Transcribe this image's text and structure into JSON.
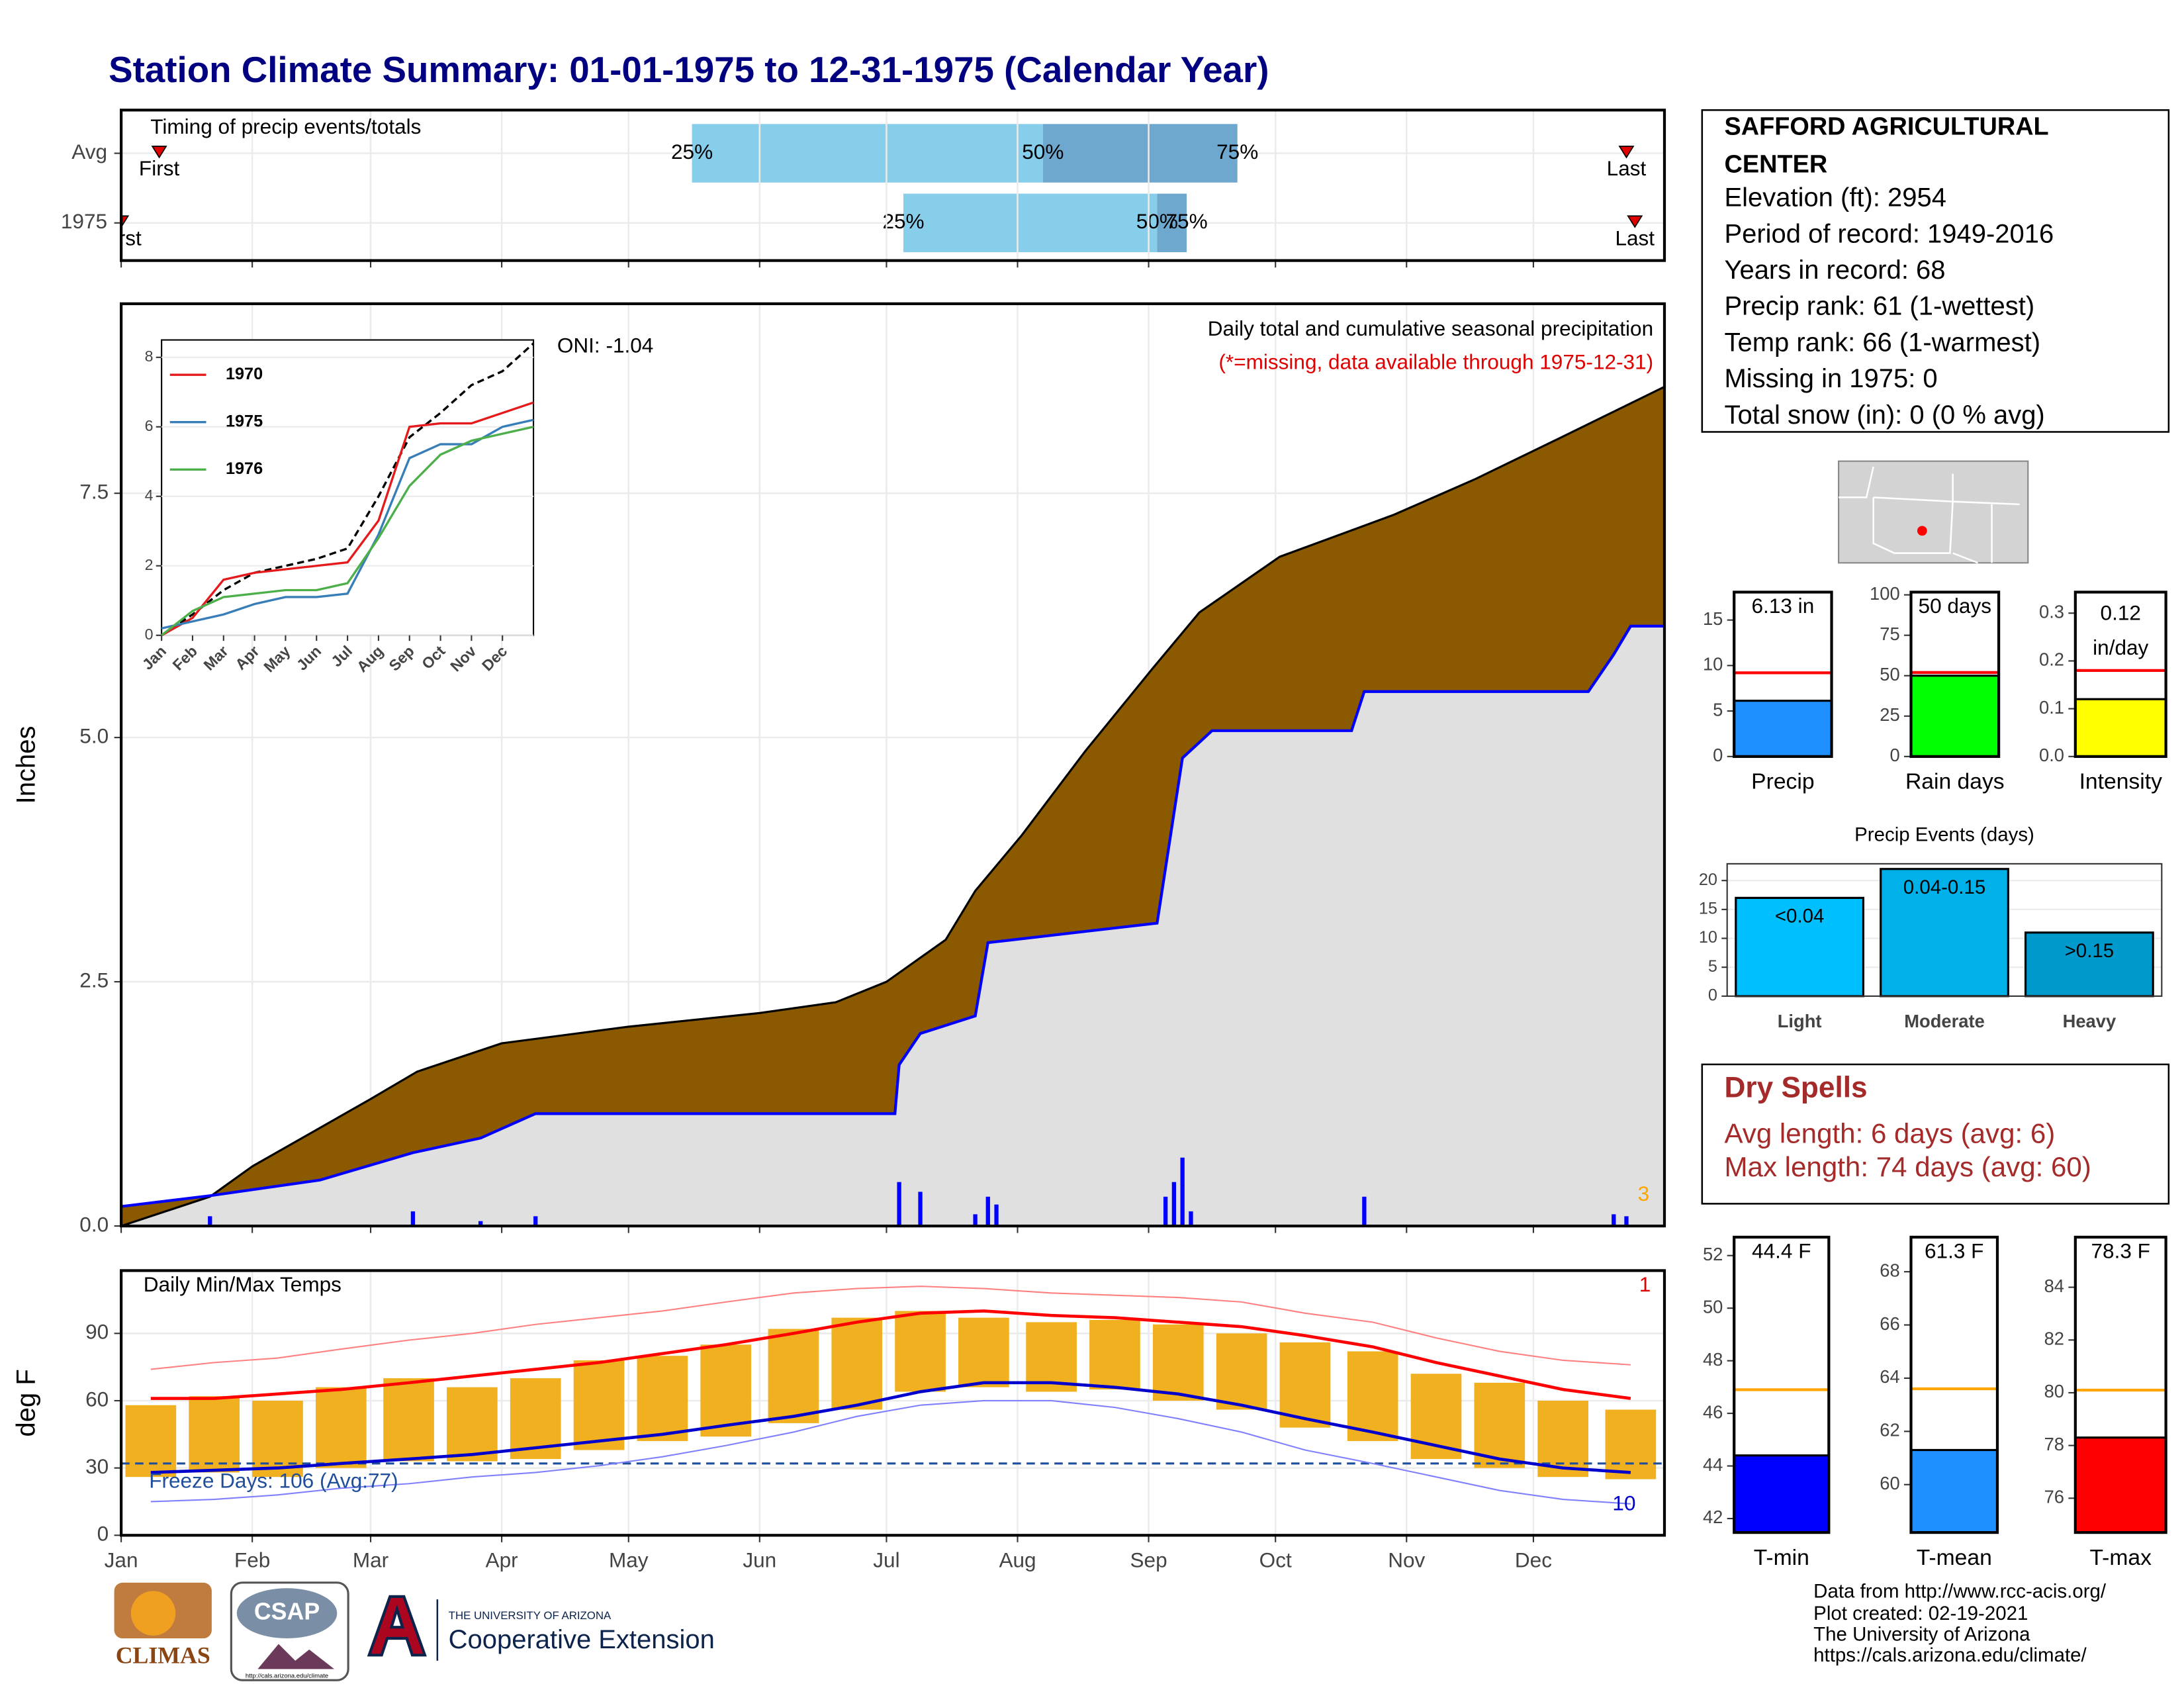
{
  "title": "Station Climate Summary: 01-01-1975 to 12-31-1975 (Calendar Year)",
  "station_info": {
    "name_lines": [
      "SAFFORD AGRICULTURAL",
      "CENTER"
    ],
    "lines": [
      "Elevation (ft): 2954",
      "Period of record: 1949-2016",
      "Years in record: 68",
      "Precip rank: 61 (1-wettest)",
      "Temp rank: 66 (1-warmest)",
      "Missing in 1975: 0",
      "Total snow (in): 0 (0 % avg)"
    ]
  },
  "dry_spells": {
    "title": "Dry Spells",
    "lines": [
      "Avg length: 6 days (avg: 6)",
      "Max length: 74 days (avg: 60)"
    ]
  },
  "footer": {
    "lines": [
      "Data from http://www.rcc-acis.org/",
      "Plot created: 02-19-2021",
      "The University of Arizona",
      "https://cals.arizona.edu/climate/"
    ]
  },
  "logos": {
    "climas": "CLIMAS",
    "csap": "CSAP",
    "csap_url": "http://cals.arizona.edu/climate",
    "ua": "THE UNIVERSITY OF ARIZONA",
    "extension": "Cooperative Extension"
  },
  "chart_data": [
    {
      "type": "timing",
      "title": "Timing of precip events/totals",
      "xlim": [
        0,
        365
      ],
      "categories": [
        "Avg",
        "1975"
      ],
      "marker_labels": {
        "first": "First",
        "q25": "25%",
        "q50": "50%",
        "q75": "75%",
        "last": "Last"
      },
      "rows": [
        {
          "first": 9,
          "q25": 135,
          "q50": 218,
          "q75": 264,
          "last": 356
        },
        {
          "first": 0,
          "q25": 185,
          "q50": 245,
          "q75": 252,
          "last": 358
        }
      ],
      "colors": {
        "lower": "#87ceeb",
        "upper": "#6fa8cf",
        "marker": "#e00000"
      }
    },
    {
      "type": "cumulative_precip",
      "ylabel": "Inches",
      "xlim": [
        0,
        365
      ],
      "ylim": [
        0,
        9.44
      ],
      "yticks": [
        {
          "value": 0,
          "label": "0.0"
        },
        2.5,
        {
          "value": 5,
          "label": "5.0"
        },
        7.5
      ],
      "subtitle": "Daily total and cumulative seasonal precipitation",
      "note": "(*=missing, data available through 1975-12-31)",
      "oni": "ONI: -1.04",
      "extreme_count": 3,
      "avg_cumulative": {
        "x": [
          0,
          21,
          31,
          59,
          70,
          90,
          120,
          151,
          169,
          181,
          195,
          202,
          213,
          228,
          244,
          255,
          274,
          301,
          320,
          340,
          365
        ],
        "values": [
          0,
          0.3,
          0.61,
          1.3,
          1.58,
          1.87,
          2.04,
          2.18,
          2.29,
          2.5,
          2.93,
          3.43,
          4.0,
          4.86,
          5.71,
          6.28,
          6.85,
          7.28,
          7.64,
          8.06,
          8.59
        ]
      },
      "year_cumulative": {
        "x": [
          0,
          21,
          47,
          69,
          85,
          98,
          183,
          184,
          189,
          202,
          205,
          235,
          245,
          251,
          258,
          291,
          294,
          347,
          353,
          357,
          365
        ],
        "values": [
          0.2,
          0.31,
          0.47,
          0.75,
          0.9,
          1.15,
          1.15,
          1.65,
          1.97,
          2.15,
          2.9,
          3.05,
          3.1,
          4.79,
          5.07,
          5.07,
          5.47,
          5.47,
          5.85,
          6.14,
          6.14
        ]
      },
      "daily": {
        "x": [
          21,
          69,
          85,
          98,
          184,
          189,
          202,
          205,
          207,
          247,
          249,
          251,
          253,
          294,
          353,
          356
        ],
        "values": [
          0.1,
          0.15,
          0.05,
          0.1,
          0.45,
          0.35,
          0.12,
          0.3,
          0.22,
          0.3,
          0.45,
          0.7,
          0.15,
          0.3,
          0.12,
          0.1
        ]
      },
      "colors": {
        "avg": "#000000",
        "year": "#0000ff",
        "surplus": "#8b5a00",
        "below": "#e0e0e0",
        "daily": "#0000ff",
        "note": "#e00000",
        "count": "#ffa500"
      }
    },
    {
      "type": "line",
      "xlim": [
        0,
        12
      ],
      "ylim": [
        0,
        8.5
      ],
      "yticks": [
        0,
        2,
        4,
        6,
        8
      ],
      "xticks": [
        {
          "value": 0,
          "label": "Jan"
        },
        {
          "value": 1,
          "label": "Feb"
        },
        {
          "value": 2,
          "label": "Mar"
        },
        {
          "value": 3,
          "label": "Apr"
        },
        {
          "value": 4,
          "label": "May"
        },
        {
          "value": 5,
          "label": "Jun"
        },
        {
          "value": 6,
          "label": "Jul"
        },
        {
          "value": 7,
          "label": "Aug"
        },
        {
          "value": 8,
          "label": "Sep"
        },
        {
          "value": 9,
          "label": "Oct"
        },
        {
          "value": 10,
          "label": "Nov"
        },
        {
          "value": 11,
          "label": "Dec"
        }
      ],
      "x": [
        0,
        1,
        2,
        3,
        4,
        5,
        6,
        7,
        8,
        9,
        10,
        11,
        12
      ],
      "series": [
        {
          "name": "1970",
          "color": "#e41a1c",
          "values": [
            0,
            0.5,
            1.6,
            1.8,
            1.9,
            2.0,
            2.1,
            3.3,
            6.0,
            6.1,
            6.1,
            6.4,
            6.7
          ]
        },
        {
          "name": "1975",
          "color": "#377eb8",
          "values": [
            0.2,
            0.4,
            0.6,
            0.9,
            1.1,
            1.1,
            1.2,
            2.9,
            5.1,
            5.5,
            5.5,
            6.0,
            6.2
          ]
        },
        {
          "name": "1976",
          "color": "#4daf4a",
          "values": [
            0,
            0.7,
            1.1,
            1.2,
            1.3,
            1.3,
            1.5,
            2.8,
            4.3,
            5.2,
            5.6,
            5.8,
            6.0
          ]
        }
      ],
      "normal": {
        "color": "#000000",
        "values": [
          0,
          0.6,
          1.3,
          1.8,
          2.0,
          2.2,
          2.5,
          4.0,
          5.7,
          6.4,
          7.2,
          7.6,
          8.4
        ]
      }
    },
    {
      "type": "temperature",
      "title": "Daily Min/Max Temps",
      "ylabel": "deg F",
      "xlim": [
        0,
        365
      ],
      "ylim": [
        0,
        118
      ],
      "yticks": [
        0,
        30,
        60,
        90
      ],
      "xticks": [
        {
          "value": 0,
          "label": "Jan"
        },
        {
          "value": 31,
          "label": "Feb"
        },
        {
          "value": 59,
          "label": "Mar"
        },
        {
          "value": 90,
          "label": "Apr"
        },
        {
          "value": 120,
          "label": "May"
        },
        {
          "value": 151,
          "label": "Jun"
        },
        {
          "value": 181,
          "label": "Jul"
        },
        {
          "value": 212,
          "label": "Aug"
        },
        {
          "value": 243,
          "label": "Sep"
        },
        {
          "value": 273,
          "label": "Oct"
        },
        {
          "value": 304,
          "label": "Nov"
        },
        {
          "value": 334,
          "label": "Dec"
        }
      ],
      "x": [
        7,
        22,
        37,
        52,
        68,
        83,
        98,
        113,
        128,
        143,
        159,
        174,
        189,
        204,
        220,
        235,
        250,
        265,
        280,
        296,
        311,
        326,
        341,
        357
      ],
      "avg_max": [
        61,
        61,
        63,
        65,
        68,
        71,
        74,
        77,
        81,
        85,
        90,
        95,
        99,
        100,
        98,
        97,
        95,
        93,
        89,
        84,
        77,
        71,
        65,
        61
      ],
      "avg_min": [
        28,
        29,
        30,
        32,
        34,
        36,
        39,
        42,
        45,
        49,
        53,
        58,
        64,
        68,
        68,
        66,
        63,
        58,
        52,
        46,
        40,
        34,
        30,
        28
      ],
      "record_max": [
        74,
        77,
        79,
        83,
        87,
        90,
        94,
        97,
        100,
        104,
        108,
        110,
        111,
        110,
        108,
        107,
        106,
        104,
        99,
        95,
        88,
        82,
        78,
        76
      ],
      "record_min": [
        15,
        16,
        18,
        21,
        23,
        26,
        28,
        31,
        35,
        40,
        46,
        53,
        58,
        60,
        60,
        57,
        52,
        46,
        38,
        32,
        26,
        20,
        16,
        14
      ],
      "year_max": [
        58,
        62,
        60,
        66,
        70,
        66,
        70,
        78,
        80,
        85,
        92,
        97,
        100,
        97,
        95,
        96,
        94,
        90,
        86,
        82,
        72,
        68,
        60,
        56
      ],
      "year_min": [
        26,
        28,
        26,
        30,
        33,
        33,
        34,
        38,
        42,
        44,
        50,
        56,
        64,
        66,
        64,
        65,
        60,
        56,
        48,
        42,
        34,
        30,
        26,
        25
      ],
      "freeze_line": 32,
      "freeze_label": "Freeze Days: 106 (Avg:77)",
      "high_count": 1,
      "low_count": 10,
      "colors": {
        "bars": "#f0b020",
        "avg_max": "#ff0000",
        "avg_min": "#0000cc",
        "record_max": "#ff8080",
        "record_min": "#8080ff",
        "freeze": "#1f4e9a"
      }
    },
    {
      "type": "gauge",
      "xlabel": "Precip",
      "value": 6.13,
      "value_label": "6.13 in",
      "avg": 9.2,
      "ylim": [
        0,
        18.07
      ],
      "yticks": [
        0,
        5,
        10,
        15
      ],
      "color": "#1e90ff",
      "avg_color": "#ff0000"
    },
    {
      "type": "gauge",
      "xlabel": "Rain days",
      "value": 50,
      "value_label": "50 days",
      "avg": 52,
      "ylim": [
        0,
        101.7
      ],
      "yticks": [
        0,
        25,
        50,
        75,
        100
      ],
      "color": "#00ff00",
      "avg_color": "#ff0000"
    },
    {
      "type": "gauge",
      "xlabel": "Intensity",
      "value": 0.12,
      "value_label": "0.12",
      "unit_label": "in/day",
      "avg": 0.18,
      "ylim": [
        0,
        0.344
      ],
      "yticks": [
        {
          "value": 0,
          "label": "0.0"
        },
        0.1,
        0.2,
        0.3
      ],
      "color": "#ffff00",
      "avg_color": "#ff0000"
    },
    {
      "type": "bar",
      "title": "Precip Events (days)",
      "categories": [
        "Light",
        "Moderate",
        "Heavy"
      ],
      "values": [
        17,
        22,
        11
      ],
      "value_labels": [
        "<0.04",
        "0.04-0.15",
        ">0.15"
      ],
      "colors": [
        "#00bfff",
        "#00b0e8",
        "#0099cc"
      ],
      "ylim": [
        0,
        22.9
      ],
      "yticks": [
        0,
        5,
        10,
        15,
        20
      ],
      "grid": true
    },
    {
      "type": "gauge",
      "xlabel": "T-min",
      "value": 44.4,
      "value_label": "44.4 F",
      "avg": 46.9,
      "ylim": [
        41.47,
        52.7
      ],
      "yticks": [
        42,
        44,
        46,
        48,
        50,
        52
      ],
      "color": "#0000ff",
      "avg_color": "#ffa500"
    },
    {
      "type": "gauge",
      "xlabel": "T-mean",
      "value": 61.3,
      "value_label": "61.3 F",
      "avg": 63.6,
      "ylim": [
        58.2,
        69.3
      ],
      "yticks": [
        60,
        62,
        64,
        66,
        68
      ],
      "color": "#1e90ff",
      "avg_color": "#ffa500"
    },
    {
      "type": "gauge",
      "xlabel": "T-max",
      "value": 78.3,
      "value_label": "78.3 F",
      "avg": 80.1,
      "ylim": [
        74.7,
        85.9
      ],
      "yticks": [
        76,
        78,
        80,
        82,
        84
      ],
      "color": "#ff0000",
      "avg_color": "#ffa500"
    }
  ]
}
